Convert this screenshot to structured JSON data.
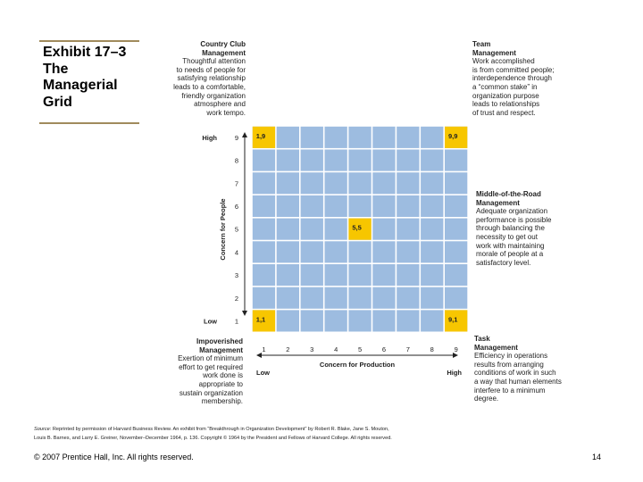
{
  "slide": {
    "title_lines": [
      "Exhibit 17–3",
      "The",
      "Managerial",
      "Grid"
    ],
    "copyright": "© 2007 Prentice Hall, Inc. All rights reserved.",
    "page_number": "14",
    "source": {
      "label": "Source:",
      "line1": "Reprinted by permission of Harvard Business Review. An exhibit from “Breakthrough in Organization Development” by Robert R. Blake, Jane S. Mouton,",
      "line2": "Louis B. Barnes, and Larry E. Greiner, November–December 1964, p. 136. Copyright © 1964 by the President and Fellows of Harvard College. All rights reserved."
    }
  },
  "annotations": {
    "country_club": {
      "heading": [
        "Country Club",
        "Management"
      ],
      "body": [
        "Thoughtful attention",
        "to needs of people for",
        "satisfying relationship",
        "leads to a comfortable,",
        "friendly organization",
        "atmosphere and",
        "work tempo."
      ]
    },
    "team": {
      "heading": [
        "Team",
        "Management"
      ],
      "body": [
        "Work accomplished",
        "is from committed people;",
        "interdependence through",
        "a “common stake” in",
        "organization purpose",
        "leads to relationships",
        "of trust and respect."
      ]
    },
    "middle_of_road": {
      "heading": [
        "Middle-of-the-Road",
        "Management"
      ],
      "body": [
        "Adequate organization",
        "performance is possible",
        "through balancing the",
        "necessity to get out",
        "work with maintaining",
        "morale of people at a",
        "satisfactory level."
      ]
    },
    "impoverished": {
      "heading": [
        "Impoverished",
        "Management"
      ],
      "body": [
        "Exertion of minimum",
        "effort to get required",
        "work done is",
        "appropriate to",
        "sustain organization",
        "membership."
      ]
    },
    "task": {
      "heading": [
        "Task",
        "Management"
      ],
      "body": [
        "Efficiency in operations",
        "results from arranging",
        "conditions of work in such",
        "a way that human elements",
        "interfere to a minimum",
        "degree."
      ]
    }
  },
  "chart_data": {
    "type": "grid",
    "x_axis": {
      "label": "Concern for Production",
      "ticks": [
        "1",
        "2",
        "3",
        "4",
        "5",
        "6",
        "7",
        "8",
        "9"
      ],
      "low_label": "Low",
      "high_label": "High",
      "range": [
        1,
        9
      ]
    },
    "y_axis": {
      "label": "Concern for People",
      "ticks": [
        "1",
        "2",
        "3",
        "4",
        "5",
        "6",
        "7",
        "8",
        "9"
      ],
      "low_label": "Low",
      "high_label": "High",
      "range": [
        1,
        9
      ]
    },
    "highlighted_points": [
      {
        "x": 1,
        "y": 9,
        "label": "1,9"
      },
      {
        "x": 9,
        "y": 9,
        "label": "9,9"
      },
      {
        "x": 5,
        "y": 5,
        "label": "5,5"
      },
      {
        "x": 1,
        "y": 1,
        "label": "1,1"
      },
      {
        "x": 9,
        "y": 1,
        "label": "9,1"
      }
    ],
    "colors": {
      "cell_fill": "#9dbce0",
      "grid_line": "#ffffff",
      "highlight_fill": "#f7c600",
      "axis_line": "#222222"
    }
  }
}
